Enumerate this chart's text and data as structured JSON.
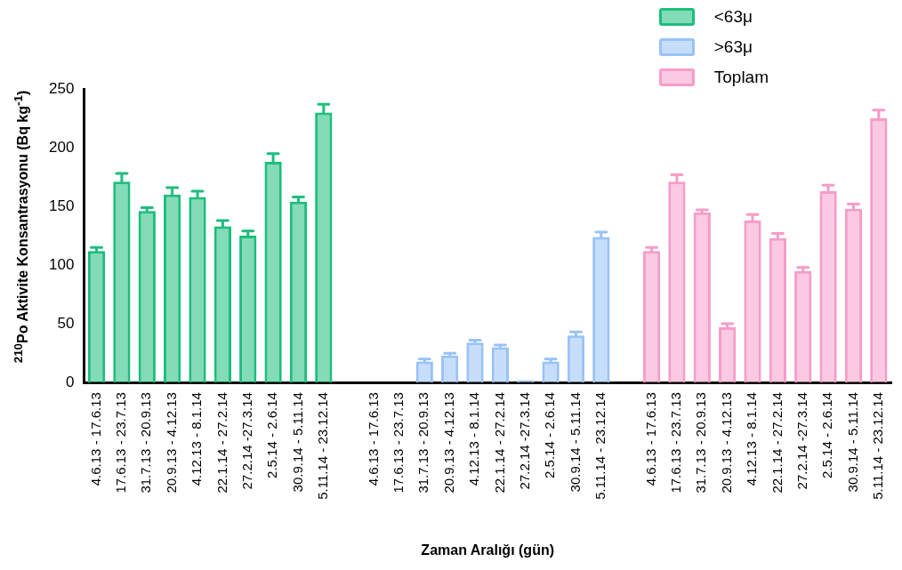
{
  "chart_data": {
    "type": "bar",
    "xlabel": "Zaman Aralığı (gün)",
    "ylabel": "$^{210}$Po Aktivite Konsantrasyonu (Bq kg$^{-1}$)",
    "categories": [
      "4.6.13 - 17.6.13",
      "17.6.13 - 23.7.13",
      "31.7.13 - 20.9.13",
      "20.9.13 - 4.12.13",
      "4.12.13 - 8.1.14",
      "22.1.14 - 27.2.14",
      "27.2.14 -27.3.14",
      "2.5.14 - 2.6.14",
      "30.9.14 - 5.11.14",
      "5.11.14 - 23.12.14",
      null,
      "4.6.13 - 17.6.13",
      "17.6.13 - 23.7.13",
      "31.7.13 - 20.9.13",
      "20.9.13 - 4.12.13",
      "4.12.13 - 8.1.14",
      "22.1.14 - 27.2.14",
      "27.2.14 -27.3.14",
      "2.5.14 - 2.6.14",
      "30.9.14 - 5.11.14",
      "5.11.14 - 23.12.14",
      null,
      "4.6.13 - 17.6.13",
      "17.6.13 - 23.7.13",
      "31.7.13 - 20.9.13",
      "20.9.13 - 4.12.13",
      "4.12.13 - 8.1.14",
      "22.1.14 - 27.2.14",
      "27.2.14 -27.3.14",
      "2.5.14 - 2.6.14",
      "30.9.14 - 5.11.14",
      "5.11.14 - 23.12.14"
    ],
    "series": [
      {
        "name": "<63μ",
        "color": "#1dbe7d",
        "values": [
          112,
          171,
          146,
          160,
          158,
          133,
          125,
          188,
          154,
          230,
          null,
          null,
          null,
          null,
          null,
          null,
          null,
          null,
          null,
          null,
          null,
          null,
          null,
          null,
          null,
          null,
          null,
          null,
          null,
          null,
          null,
          null
        ],
        "errors": [
          3,
          7,
          3,
          6,
          5,
          5,
          4,
          7,
          4,
          7,
          null,
          null,
          null,
          null,
          null,
          null,
          null,
          null,
          null,
          null,
          null,
          null,
          null,
          null,
          null,
          null,
          null,
          null,
          null,
          null,
          null,
          null
        ]
      },
      {
        "name": ">63μ",
        "color": "#99c2f7",
        "values": [
          null,
          null,
          null,
          null,
          null,
          null,
          null,
          null,
          null,
          null,
          null,
          null,
          null,
          18,
          23,
          34,
          30,
          2,
          18,
          40,
          124,
          null,
          null,
          null,
          null,
          null,
          null,
          null,
          null,
          null,
          null,
          null
        ],
        "errors": [
          null,
          null,
          null,
          null,
          null,
          null,
          null,
          null,
          null,
          null,
          null,
          null,
          null,
          2,
          2,
          2,
          2,
          null,
          2,
          3,
          4,
          null,
          null,
          null,
          null,
          null,
          null,
          null,
          null,
          null,
          null,
          null
        ]
      },
      {
        "name": "Toplam",
        "color": "#f79cc8",
        "values": [
          null,
          null,
          null,
          null,
          null,
          null,
          null,
          null,
          null,
          null,
          null,
          null,
          null,
          null,
          null,
          null,
          null,
          null,
          null,
          null,
          null,
          null,
          112,
          171,
          145,
          47,
          138,
          123,
          95,
          163,
          148,
          225
        ],
        "errors": [
          null,
          null,
          null,
          null,
          null,
          null,
          null,
          null,
          null,
          null,
          null,
          null,
          null,
          null,
          null,
          null,
          null,
          null,
          null,
          null,
          null,
          null,
          3,
          6,
          2,
          3,
          5,
          4,
          3,
          5,
          4,
          7
        ]
      }
    ],
    "ylim": [
      0,
      250
    ],
    "yticks": [
      0,
      50,
      100,
      150,
      200,
      250
    ],
    "grid": false,
    "legend": "top right"
  }
}
